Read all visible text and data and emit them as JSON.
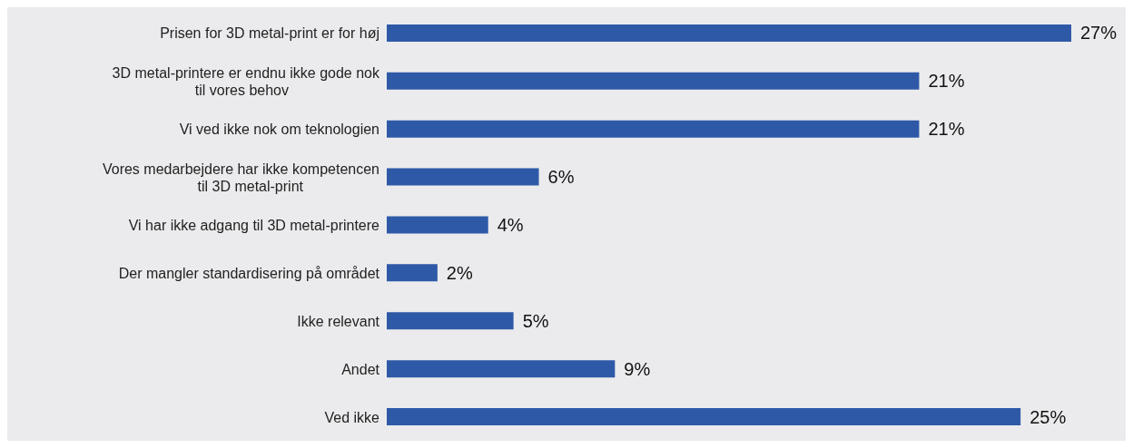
{
  "chart_data": {
    "type": "bar",
    "orientation": "horizontal",
    "categories": [
      "Prisen for 3D metal-print er for høj",
      "3D metal-printere er endnu ikke gode nok til vores behov",
      "Vi ved ikke nok om teknologien",
      "Vores medarbejdere har ikke kompetencen til 3D metal-print",
      "Vi har ikke adgang til 3D metal-printere",
      "Der mangler standardisering på området",
      "Ikke relevant",
      "Andet",
      "Ved ikke"
    ],
    "values": [
      27,
      21,
      21,
      6,
      4,
      2,
      5,
      9,
      25
    ],
    "value_labels": [
      "27%",
      "21%",
      "21%",
      "6%",
      "4%",
      "2%",
      "5%",
      "9%",
      "25%"
    ],
    "color": "#2e59a7",
    "grid": false,
    "legend": false
  }
}
